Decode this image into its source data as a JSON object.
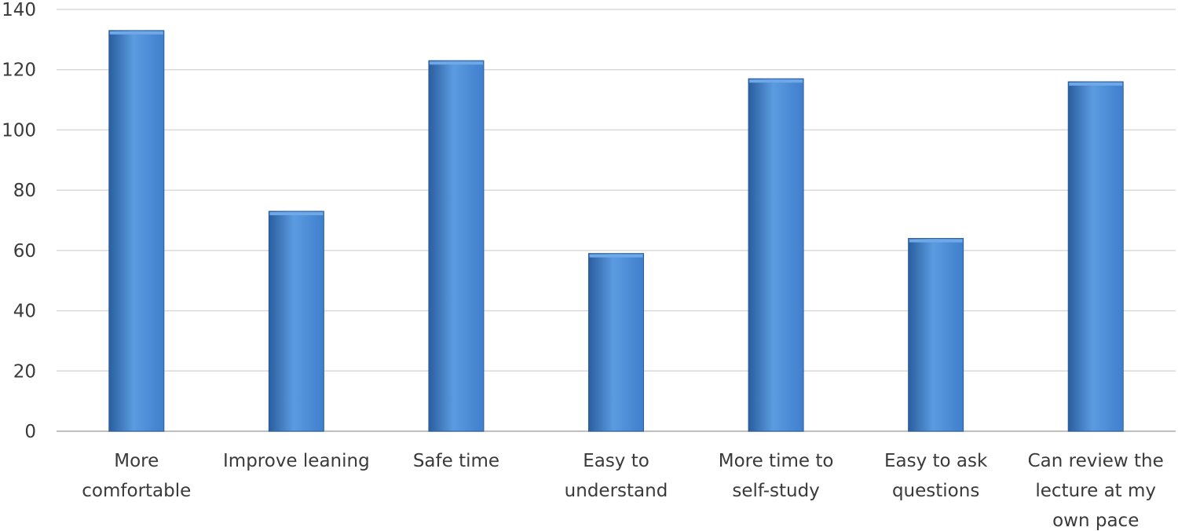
{
  "chart_data": {
    "type": "bar",
    "title": "",
    "xlabel": "",
    "ylabel": "",
    "categories": [
      "More comfortable",
      "Improve leaning",
      "Safe time",
      "Easy to understand",
      "More time to self-study",
      "Easy to ask questions",
      "Can review the lecture at my own pace"
    ],
    "category_label_lines": [
      [
        "More",
        "comfortable"
      ],
      [
        "Improve leaning"
      ],
      [
        "Safe time"
      ],
      [
        "Easy to",
        "understand"
      ],
      [
        "More time to",
        "self-study"
      ],
      [
        "Easy to ask",
        "questions"
      ],
      [
        "Can review the",
        "lecture at my",
        "own pace"
      ]
    ],
    "values": [
      133,
      73,
      123,
      59,
      117,
      64,
      116
    ],
    "ylim": [
      0,
      140
    ],
    "yticks": [
      0,
      20,
      40,
      60,
      80,
      100,
      120,
      140
    ],
    "grid": true,
    "legend": "none",
    "colors": {
      "bar_light": "#5b9be0",
      "bar_mid": "#3f7fcc",
      "bar_dark": "#2a5e9f",
      "bar_top": "#6fa8e6"
    }
  }
}
